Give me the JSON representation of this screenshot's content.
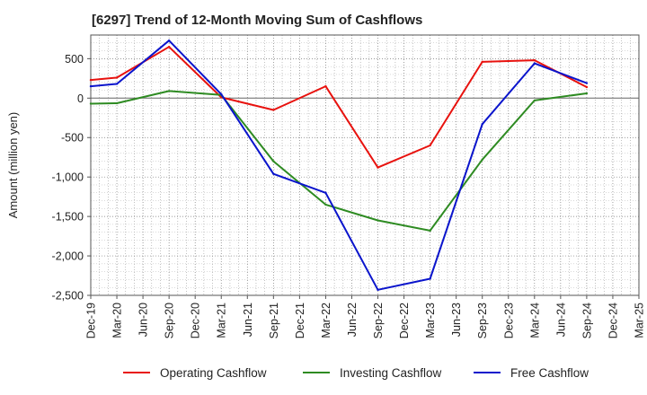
{
  "chart_data": {
    "type": "line",
    "title": "[6297]  Trend of 12-Month Moving Sum of Cashflows",
    "xlabel": "",
    "ylabel": "Amount (million yen)",
    "ylim": [
      -2500,
      800
    ],
    "yticks": [
      500,
      0,
      -500,
      -1000,
      -1500,
      -2000,
      -2500
    ],
    "ytick_labels": [
      "500",
      "0",
      "-500",
      "-1,000",
      "-1,500",
      "-2,000",
      "-2,500"
    ],
    "x_labels": [
      "Dec-19",
      "Mar-20",
      "Jun-20",
      "Sep-20",
      "Dec-20",
      "Mar-21",
      "Jun-21",
      "Sep-21",
      "Dec-21",
      "Mar-22",
      "Jun-22",
      "Sep-22",
      "Dec-22",
      "Mar-23",
      "Jun-23",
      "Sep-23",
      "Dec-23",
      "Mar-24",
      "Jun-24",
      "Sep-24",
      "Dec-24",
      "Mar-25"
    ],
    "grid": true,
    "legend_position": "bottom",
    "series": [
      {
        "name": "Operating Cashflow",
        "color": "#e8120e",
        "points": [
          [
            "Dec-19",
            230
          ],
          [
            "Mar-20",
            260
          ],
          [
            "Sep-20",
            650
          ],
          [
            "Mar-21",
            10
          ],
          [
            "Sep-21",
            -150
          ],
          [
            "Mar-22",
            150
          ],
          [
            "Sep-22",
            -880
          ],
          [
            "Mar-23",
            -600
          ],
          [
            "Sep-23",
            460
          ],
          [
            "Mar-24",
            480
          ],
          [
            "Sep-24",
            140
          ]
        ]
      },
      {
        "name": "Investing Cashflow",
        "color": "#2e8b22",
        "points": [
          [
            "Dec-19",
            -70
          ],
          [
            "Mar-20",
            -65
          ],
          [
            "Sep-20",
            90
          ],
          [
            "Mar-21",
            40
          ],
          [
            "Sep-21",
            -800
          ],
          [
            "Mar-22",
            -1350
          ],
          [
            "Sep-22",
            -1550
          ],
          [
            "Mar-23",
            -1680
          ],
          [
            "Sep-23",
            -780
          ],
          [
            "Mar-24",
            -30
          ],
          [
            "Sep-24",
            60
          ]
        ]
      },
      {
        "name": "Free Cashflow",
        "color": "#0a14cc",
        "points": [
          [
            "Dec-19",
            150
          ],
          [
            "Mar-20",
            180
          ],
          [
            "Sep-20",
            730
          ],
          [
            "Mar-21",
            50
          ],
          [
            "Sep-21",
            -960
          ],
          [
            "Mar-22",
            -1200
          ],
          [
            "Sep-22",
            -2430
          ],
          [
            "Mar-23",
            -2290
          ],
          [
            "Sep-23",
            -330
          ],
          [
            "Mar-24",
            440
          ],
          [
            "Sep-24",
            190
          ]
        ]
      }
    ]
  }
}
